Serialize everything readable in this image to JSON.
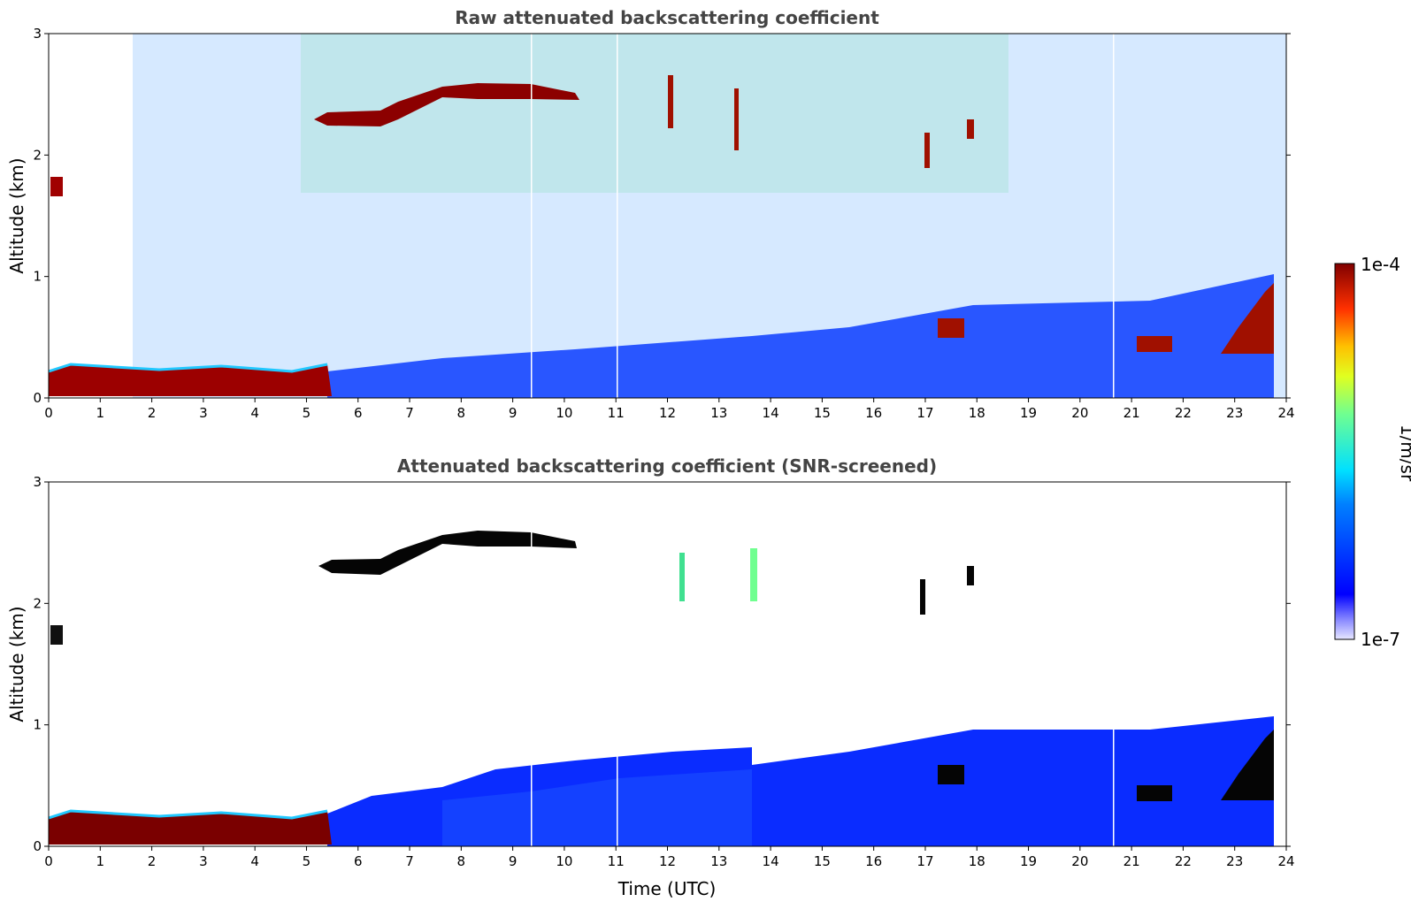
{
  "chart_data": [
    {
      "type": "heatmap",
      "title": "Raw attenuated backscattering coefficient",
      "xlabel": "",
      "ylabel": "Altitude (km)",
      "xlim": [
        0,
        24
      ],
      "ylim": [
        0,
        3
      ],
      "x_ticks": [
        "0",
        "1",
        "2",
        "3",
        "4",
        "5",
        "6",
        "7",
        "8",
        "9",
        "10",
        "11",
        "12",
        "13",
        "14",
        "15",
        "16",
        "17",
        "18",
        "19",
        "20",
        "21",
        "22",
        "23",
        "24"
      ],
      "y_ticks": [
        "0",
        "1",
        "2",
        "3"
      ],
      "color_scale": "log",
      "features": [
        {
          "name": "boundary layer aerosol",
          "x": [
            0,
            5.3
          ],
          "y": [
            0.05,
            0.28
          ],
          "level": 1.0
        },
        {
          "name": "elevated layer",
          "x": [
            0.05,
            0.25
          ],
          "y": [
            1.65,
            1.8
          ],
          "level": 0.95
        },
        {
          "name": "cloud layer",
          "x": [
            5.3,
            10.5
          ],
          "y": [
            2.2,
            2.6
          ],
          "level": 1.0
        },
        {
          "name": "mixed layer aerosol",
          "x": [
            5.5,
            23.8
          ],
          "y": [
            0.0,
            0.8
          ],
          "level": 0.3
        },
        {
          "name": "low clouds",
          "x": [
            15.5,
            23.8
          ],
          "y": [
            0.3,
            1.0
          ],
          "level": 1.0
        }
      ]
    },
    {
      "type": "heatmap",
      "title": "Attenuated backscattering coefficient (SNR-screened)",
      "xlabel": "Time (UTC)",
      "ylabel": "Altitude (km)",
      "xlim": [
        0,
        24
      ],
      "ylim": [
        0,
        3
      ],
      "x_ticks": [
        "0",
        "1",
        "2",
        "3",
        "4",
        "5",
        "6",
        "7",
        "8",
        "9",
        "10",
        "11",
        "12",
        "13",
        "14",
        "15",
        "16",
        "17",
        "18",
        "19",
        "20",
        "21",
        "22",
        "23",
        "24"
      ],
      "y_ticks": [
        "0",
        "1",
        "2",
        "3"
      ],
      "color_scale": "log",
      "features": [
        {
          "name": "boundary layer aerosol",
          "x": [
            0,
            5.3
          ],
          "y": [
            0.05,
            0.28
          ],
          "level": 1.0
        },
        {
          "name": "cloud layer",
          "x": [
            5.3,
            10.5
          ],
          "y": [
            2.2,
            2.6
          ],
          "level": 1.1
        },
        {
          "name": "mixed layer aerosol",
          "x": [
            5.5,
            23.8
          ],
          "y": [
            0.0,
            0.8
          ],
          "level": 0.3
        },
        {
          "name": "low clouds",
          "x": [
            15.5,
            23.8
          ],
          "y": [
            0.3,
            1.0
          ],
          "level": 1.1
        }
      ]
    }
  ],
  "colorbar": {
    "label": "1/m/sr",
    "max_label": "1e-4",
    "min_label": "1e-7",
    "min": 1e-07,
    "max": 0.0001,
    "colormap": "jet"
  }
}
